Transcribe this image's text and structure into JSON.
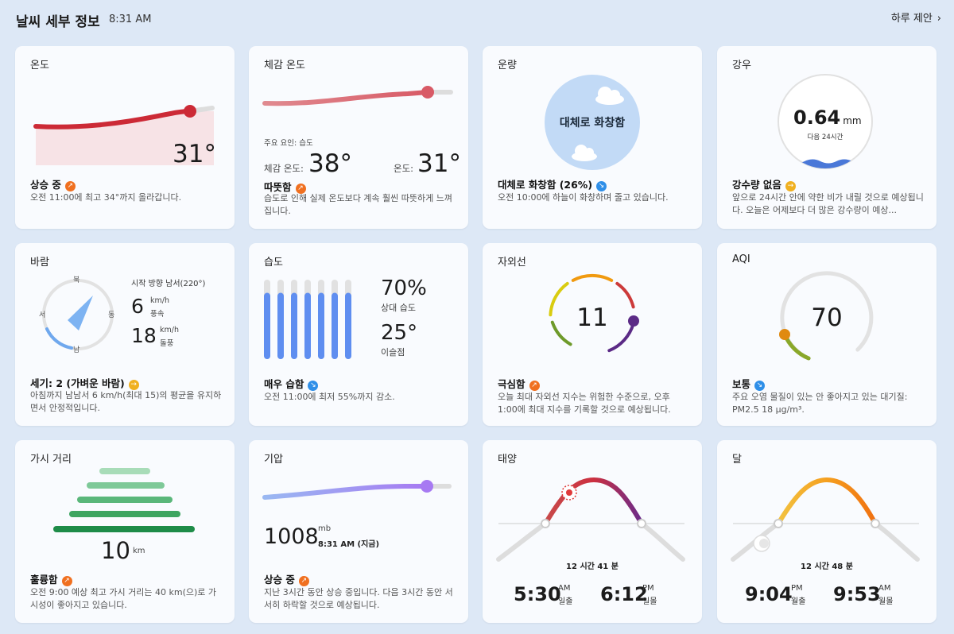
{
  "header": {
    "title": "날씨 세부 정보",
    "time": "8:31 AM",
    "suggest_label": "하루 제안"
  },
  "cards": {
    "temperature": {
      "title": "온도",
      "value": "31°",
      "status": "상승 중",
      "desc": "오전 11:00에 최고 34°까지 올라갑니다."
    },
    "feels_like": {
      "title": "체감 온도",
      "factor": "주요 요인: 습도",
      "feels_label": "체감 온도:",
      "feels_value": "38°",
      "temp_label": "온도:",
      "temp_value": "31°",
      "status": "따뜻함",
      "desc": "습도로 인해 실제 온도보다 계속 훨씬 따뜻하게 느껴집니다."
    },
    "cloud": {
      "title": "운량",
      "center": "대체로 화창함",
      "status": "대체로 화창함 (26%)",
      "desc": "오전 10:00에 하늘이 화창하며 줄고 있습니다."
    },
    "rain": {
      "title": "강우",
      "value": "0.64",
      "unit": "mm",
      "sub": "다음 24시간",
      "status": "강수량 없음",
      "desc": "앞으로 24시간 안에 약한 비가 내릴 것으로 예상됩니다. 오늘은 어제보다 더 많은 강수량이 예상..."
    },
    "wind": {
      "title": "바람",
      "n": "북",
      "e": "동",
      "s": "남",
      "w": "서",
      "dir": "시작 방향 남서(220°)",
      "speed": "6",
      "speed_unit": "km/h",
      "speed_label": "풍속",
      "gust": "18",
      "gust_unit": "km/h",
      "gust_label": "돌풍",
      "status": "세기: 2 (가벼운 바람)",
      "desc": "아침까지 남남서 6 km/h(최대 15)의 평균을 유지하면서 안정적입니다."
    },
    "humidity": {
      "title": "습도",
      "rh": "70%",
      "rh_label": "상대 습도",
      "dew": "25°",
      "dew_label": "이슬점",
      "levels": [
        0.82,
        0.82,
        0.82,
        0.82,
        0.82,
        0.82,
        0.82
      ],
      "status": "매우 습함",
      "desc": "오전 11:00에 최저 55%까지 감소."
    },
    "uv": {
      "title": "자외선",
      "value": "11",
      "status": "극심함",
      "desc": "오늘 최대 자외선 지수는 위험한 수준으로, 오후 1:00에 최대 지수를 기록할 것으로 예상됩니다."
    },
    "aqi": {
      "title": "AQI",
      "value": "70",
      "status": "보통",
      "desc": "주요 오염 물질이 있는 안 좋아지고 있는 대기질: PM2.5 18 µg/m³."
    },
    "visibility": {
      "title": "가시 거리",
      "value": "10",
      "unit": "km",
      "status": "훌륭함",
      "desc": "오전 9:00 예상 최고 가시 거리는 40 km(으)로 가시성이 좋아지고 있습니다."
    },
    "pressure": {
      "title": "기압",
      "value": "1008",
      "unit": "mb",
      "time": "8:31 AM (지금)",
      "status": "상승 중",
      "desc": "지난 3시간 동안 상승 중입니다. 다음 3시간 동안 서서히 하락할 것으로 예상됩니다."
    },
    "sun": {
      "title": "태양",
      "duration": "12 시간 41 분",
      "rise_time": "5:30",
      "rise_ampm": "AM",
      "rise_label": "일출",
      "set_time": "6:12",
      "set_ampm": "PM",
      "set_label": "일몰"
    },
    "moon": {
      "title": "달",
      "duration": "12 시간 48 분",
      "rise_time": "9:04",
      "rise_ampm": "PM",
      "rise_label": "월출",
      "set_time": "9:53",
      "set_ampm": "AM",
      "set_label": "월몰"
    }
  },
  "colors": {
    "accent_red": "#cc2a36",
    "uv_purple": "#5b2a86",
    "aqi_orange": "#e08a10"
  }
}
